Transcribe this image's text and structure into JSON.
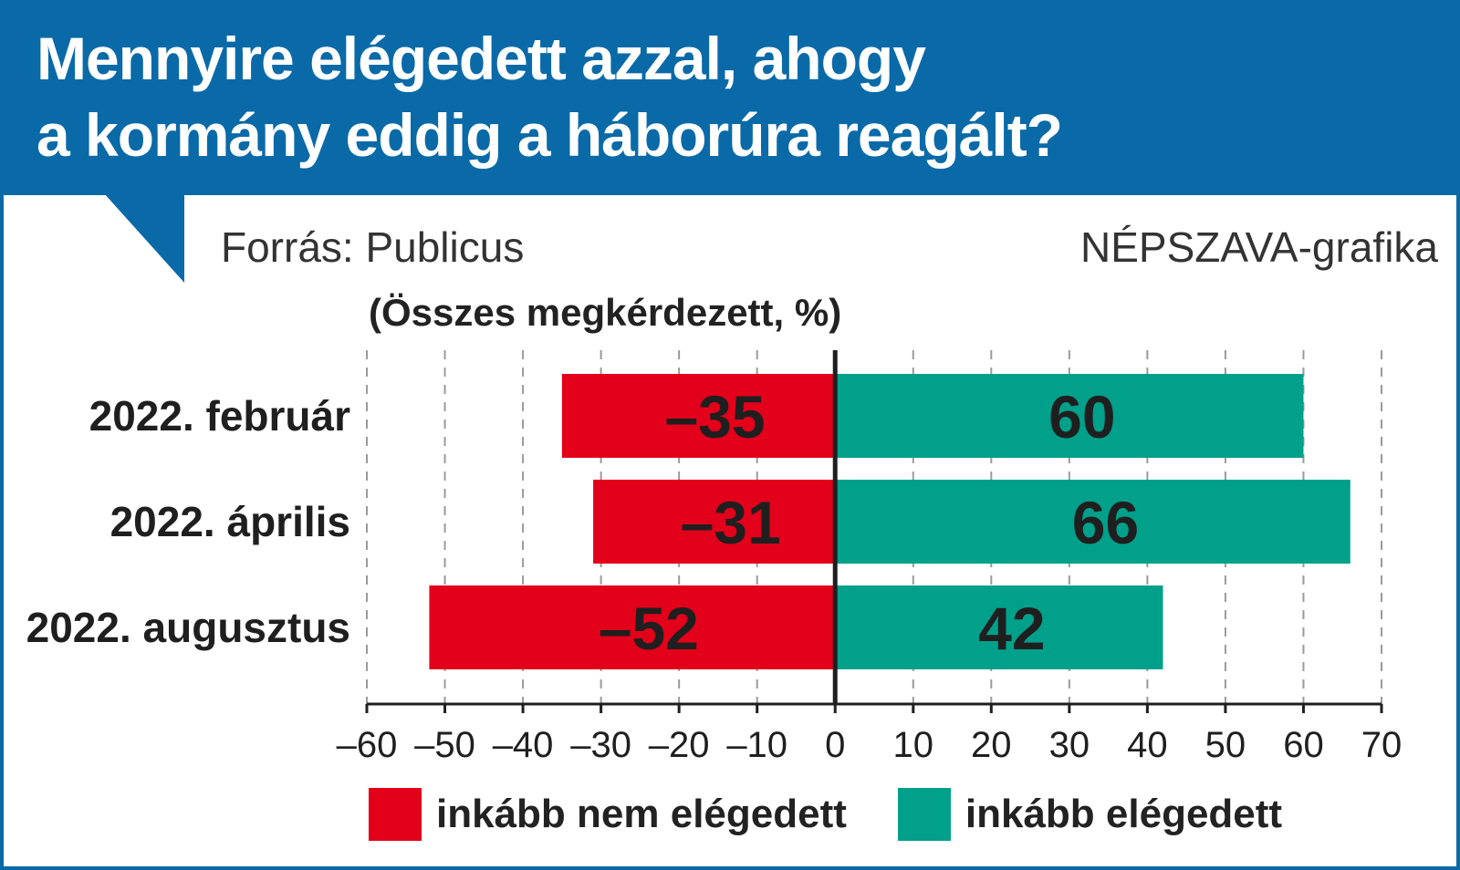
{
  "title_line1": "Mennyire elégedett azzal, ahogy",
  "title_line2": "a kormány eddig a háborúra reagált?",
  "source": "Forrás: Publicus",
  "credit": "NÉPSZAVA-grafika",
  "subtitle": "(Összes megkérdezett, %)",
  "colors": {
    "brand": "#0a6aa8",
    "negative": "#e2001a",
    "positive": "#00a08a"
  },
  "chart_data": {
    "type": "bar",
    "orientation": "horizontal",
    "stacked": "diverging",
    "categories": [
      "2022. február",
      "2022. április",
      "2022. augusztus"
    ],
    "series": [
      {
        "name": "inkább nem elégedett",
        "values": [
          -35,
          -31,
          -52
        ],
        "labels": [
          "–35",
          "–31",
          "–52"
        ],
        "color": "#e2001a"
      },
      {
        "name": "inkább elégedett",
        "values": [
          60,
          66,
          42
        ],
        "labels": [
          "60",
          "66",
          "42"
        ],
        "color": "#00a08a"
      }
    ],
    "xlim": [
      -60,
      70
    ],
    "xticks": [
      -60,
      -50,
      -40,
      -30,
      -20,
      -10,
      0,
      10,
      20,
      30,
      40,
      50,
      60,
      70
    ],
    "xtick_labels": [
      "–60",
      "–50",
      "–40",
      "–30",
      "–20",
      "–10",
      "0",
      "10",
      "20",
      "30",
      "40",
      "50",
      "60",
      "70"
    ],
    "grid": "vertical dashed",
    "legend_position": "bottom"
  }
}
